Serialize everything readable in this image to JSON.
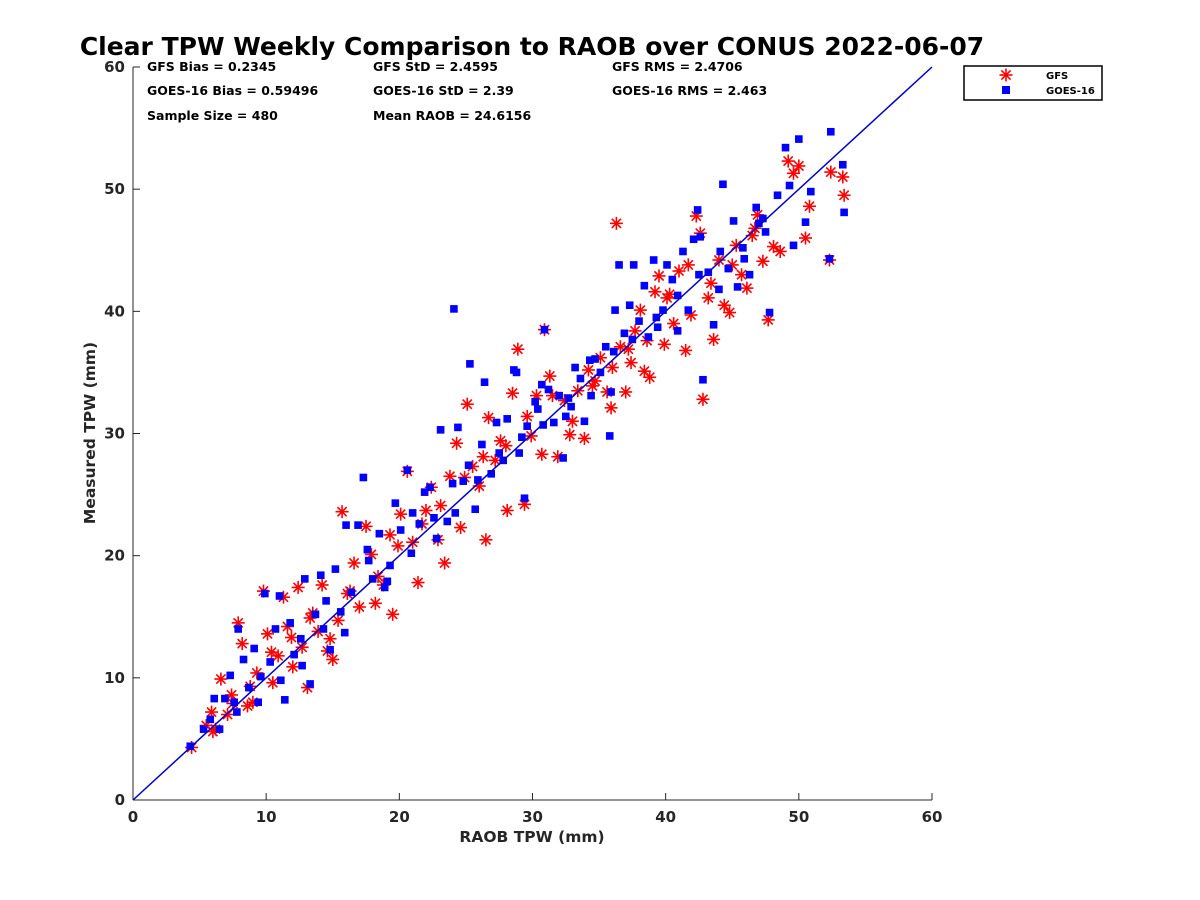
{
  "chart_data": {
    "type": "scatter",
    "title": "Clear TPW Weekly Comparison to RAOB over CONUS 2022-06-07",
    "xlabel": "RAOB TPW (mm)",
    "ylabel": "Measured TPW (mm)",
    "xlim": [
      0,
      60
    ],
    "ylim": [
      0,
      60
    ],
    "xticks": [
      "0",
      "10",
      "20",
      "30",
      "40",
      "50",
      "60"
    ],
    "yticks": [
      "0",
      "10",
      "20",
      "30",
      "40",
      "50",
      "60"
    ],
    "grid": false,
    "legend_position": "top-right (outside plot)",
    "reference_line": {
      "from": [
        0,
        0
      ],
      "to": [
        60,
        60
      ],
      "color": "#0000cc"
    },
    "stats": {
      "gfs_bias": "GFS Bias = 0.2345",
      "goes_bias": "GOES-16 Bias = 0.59496",
      "sample_size": "Sample Size = 480",
      "gfs_std": "GFS StD = 2.4595",
      "goes_std": "GOES-16 StD = 2.39",
      "mean_raob": "Mean RAOB = 24.6156",
      "gfs_rms": "GFS RMS = 2.4706",
      "goes_rms": "GOES-16 RMS = 2.463"
    },
    "series": [
      {
        "name": "GFS",
        "marker": "asterisk",
        "color": "#ff0000",
        "points": [
          [
            4.4,
            4.3
          ],
          [
            5.5,
            6.1
          ],
          [
            5.9,
            7.2
          ],
          [
            6.2,
            5.8
          ],
          [
            6.6,
            9.9
          ],
          [
            7.1,
            7.0
          ],
          [
            7.4,
            8.6
          ],
          [
            7.9,
            14.5
          ],
          [
            8.2,
            12.8
          ],
          [
            8.6,
            7.7
          ],
          [
            9.0,
            8.0
          ],
          [
            9.3,
            10.4
          ],
          [
            9.8,
            17.1
          ],
          [
            10.1,
            13.6
          ],
          [
            10.5,
            9.6
          ],
          [
            10.9,
            11.8
          ],
          [
            11.3,
            16.6
          ],
          [
            11.6,
            14.2
          ],
          [
            12.0,
            10.9
          ],
          [
            12.4,
            17.4
          ],
          [
            12.7,
            12.5
          ],
          [
            13.1,
            9.2
          ],
          [
            13.5,
            15.3
          ],
          [
            13.9,
            13.8
          ],
          [
            14.2,
            17.6
          ],
          [
            14.6,
            12.2
          ],
          [
            15.0,
            11.5
          ],
          [
            15.4,
            14.7
          ],
          [
            15.7,
            23.6
          ],
          [
            16.1,
            16.9
          ],
          [
            16.6,
            19.4
          ],
          [
            17.0,
            15.8
          ],
          [
            17.5,
            22.4
          ],
          [
            17.9,
            20.1
          ],
          [
            18.4,
            18.3
          ],
          [
            18.8,
            17.6
          ],
          [
            19.3,
            21.7
          ],
          [
            19.5,
            15.2
          ],
          [
            20.1,
            23.4
          ],
          [
            20.6,
            26.9
          ],
          [
            21.0,
            21.1
          ],
          [
            21.4,
            17.8
          ],
          [
            22.0,
            23.7
          ],
          [
            22.4,
            25.6
          ],
          [
            22.9,
            21.3
          ],
          [
            23.4,
            19.4
          ],
          [
            23.8,
            26.5
          ],
          [
            24.3,
            29.2
          ],
          [
            24.6,
            22.3
          ],
          [
            25.1,
            32.4
          ],
          [
            25.5,
            27.3
          ],
          [
            26.0,
            25.7
          ],
          [
            26.5,
            21.3
          ],
          [
            26.7,
            31.3
          ],
          [
            27.2,
            27.8
          ],
          [
            27.6,
            29.4
          ],
          [
            28.1,
            23.7
          ],
          [
            28.5,
            33.3
          ],
          [
            28.9,
            36.9
          ],
          [
            29.4,
            24.2
          ],
          [
            29.9,
            29.8
          ],
          [
            30.3,
            33.1
          ],
          [
            30.7,
            28.3
          ],
          [
            30.9,
            38.5
          ],
          [
            31.3,
            34.7
          ],
          [
            31.9,
            28.1
          ],
          [
            32.4,
            32.7
          ],
          [
            32.8,
            29.9
          ],
          [
            33.4,
            33.5
          ],
          [
            33.9,
            29.6
          ],
          [
            34.2,
            35.2
          ],
          [
            34.7,
            34.3
          ],
          [
            35.1,
            36.2
          ],
          [
            35.6,
            33.4
          ],
          [
            35.9,
            32.1
          ],
          [
            36.3,
            47.2
          ],
          [
            36.6,
            37.1
          ],
          [
            37.0,
            33.4
          ],
          [
            37.4,
            35.8
          ],
          [
            37.7,
            38.4
          ],
          [
            38.1,
            40.1
          ],
          [
            38.4,
            35.1
          ],
          [
            38.8,
            34.6
          ],
          [
            39.2,
            41.6
          ],
          [
            39.5,
            42.9
          ],
          [
            39.9,
            37.3
          ],
          [
            40.3,
            41.4
          ],
          [
            40.6,
            39.0
          ],
          [
            41.0,
            43.3
          ],
          [
            41.5,
            36.8
          ],
          [
            41.9,
            39.7
          ],
          [
            42.3,
            47.8
          ],
          [
            42.6,
            46.4
          ],
          [
            42.8,
            32.8
          ],
          [
            43.2,
            41.1
          ],
          [
            43.6,
            37.7
          ],
          [
            44.0,
            44.2
          ],
          [
            44.4,
            40.5
          ],
          [
            44.8,
            39.9
          ],
          [
            45.3,
            45.4
          ],
          [
            45.7,
            43.0
          ],
          [
            46.1,
            41.9
          ],
          [
            46.5,
            46.2
          ],
          [
            46.9,
            47.9
          ],
          [
            47.3,
            44.1
          ],
          [
            47.7,
            39.3
          ],
          [
            48.1,
            45.3
          ],
          [
            48.6,
            44.9
          ],
          [
            49.2,
            52.3
          ],
          [
            49.6,
            51.3
          ],
          [
            50.0,
            51.9
          ],
          [
            50.5,
            46.0
          ],
          [
            50.8,
            48.6
          ],
          [
            52.3,
            44.2
          ],
          [
            52.4,
            51.4
          ],
          [
            53.3,
            51.0
          ],
          [
            53.4,
            49.5
          ],
          [
            6.0,
            5.6
          ],
          [
            7.5,
            7.9
          ],
          [
            8.8,
            9.3
          ],
          [
            10.4,
            12.1
          ],
          [
            11.9,
            13.3
          ],
          [
            13.3,
            14.9
          ],
          [
            14.8,
            13.2
          ],
          [
            16.3,
            17.1
          ],
          [
            18.2,
            16.1
          ],
          [
            19.9,
            20.8
          ],
          [
            21.7,
            22.6
          ],
          [
            23.1,
            24.1
          ],
          [
            24.9,
            26.4
          ],
          [
            26.3,
            28.1
          ],
          [
            28.0,
            29.0
          ],
          [
            29.6,
            31.4
          ],
          [
            31.5,
            33.1
          ],
          [
            33.0,
            31.0
          ],
          [
            34.5,
            33.9
          ],
          [
            36.0,
            35.4
          ],
          [
            37.2,
            36.9
          ],
          [
            38.6,
            37.6
          ],
          [
            40.1,
            41.1
          ],
          [
            41.7,
            43.8
          ],
          [
            43.4,
            42.3
          ],
          [
            45.0,
            43.8
          ],
          [
            46.7,
            46.8
          ]
        ]
      },
      {
        "name": "GOES-16",
        "marker": "square",
        "color": "#0000ff",
        "points": [
          [
            4.3,
            4.4
          ],
          [
            5.3,
            5.8
          ],
          [
            5.8,
            6.6
          ],
          [
            6.1,
            8.3
          ],
          [
            6.5,
            5.8
          ],
          [
            6.9,
            8.3
          ],
          [
            7.3,
            10.2
          ],
          [
            7.6,
            8.0
          ],
          [
            7.9,
            14.0
          ],
          [
            8.3,
            11.5
          ],
          [
            8.7,
            9.2
          ],
          [
            9.1,
            12.4
          ],
          [
            9.6,
            10.1
          ],
          [
            9.9,
            16.9
          ],
          [
            10.3,
            11.3
          ],
          [
            10.7,
            14.0
          ],
          [
            11.0,
            16.7
          ],
          [
            11.4,
            8.2
          ],
          [
            11.8,
            14.5
          ],
          [
            12.1,
            11.9
          ],
          [
            12.6,
            13.2
          ],
          [
            12.9,
            18.1
          ],
          [
            13.3,
            9.5
          ],
          [
            13.7,
            15.2
          ],
          [
            14.1,
            18.4
          ],
          [
            14.5,
            16.3
          ],
          [
            14.8,
            12.3
          ],
          [
            15.2,
            18.9
          ],
          [
            15.6,
            15.4
          ],
          [
            16.0,
            22.5
          ],
          [
            16.4,
            17.0
          ],
          [
            16.9,
            22.5
          ],
          [
            17.3,
            26.4
          ],
          [
            17.6,
            20.5
          ],
          [
            18.0,
            18.1
          ],
          [
            18.5,
            21.8
          ],
          [
            18.9,
            17.4
          ],
          [
            19.3,
            19.2
          ],
          [
            19.7,
            24.3
          ],
          [
            20.1,
            22.1
          ],
          [
            20.6,
            27.0
          ],
          [
            21.0,
            23.5
          ],
          [
            21.5,
            22.6
          ],
          [
            21.9,
            25.2
          ],
          [
            22.3,
            25.6
          ],
          [
            22.8,
            21.4
          ],
          [
            23.1,
            30.3
          ],
          [
            23.6,
            22.8
          ],
          [
            24.0,
            25.9
          ],
          [
            24.4,
            30.5
          ],
          [
            24.8,
            26.1
          ],
          [
            25.2,
            27.4
          ],
          [
            25.7,
            23.8
          ],
          [
            26.2,
            29.1
          ],
          [
            26.4,
            34.2
          ],
          [
            26.9,
            26.7
          ],
          [
            27.3,
            30.9
          ],
          [
            27.8,
            27.8
          ],
          [
            28.1,
            31.2
          ],
          [
            28.6,
            35.2
          ],
          [
            29.0,
            28.4
          ],
          [
            29.4,
            24.7
          ],
          [
            29.6,
            30.6
          ],
          [
            30.2,
            32.6
          ],
          [
            30.7,
            34.0
          ],
          [
            30.9,
            38.5
          ],
          [
            31.2,
            33.6
          ],
          [
            31.6,
            30.9
          ],
          [
            32.0,
            33.1
          ],
          [
            32.5,
            31.4
          ],
          [
            32.9,
            32.2
          ],
          [
            33.2,
            35.4
          ],
          [
            33.6,
            34.5
          ],
          [
            33.9,
            31.0
          ],
          [
            34.4,
            33.1
          ],
          [
            34.7,
            36.1
          ],
          [
            35.1,
            35.0
          ],
          [
            35.5,
            37.1
          ],
          [
            35.9,
            33.4
          ],
          [
            36.2,
            40.1
          ],
          [
            36.5,
            43.8
          ],
          [
            36.9,
            38.2
          ],
          [
            37.3,
            40.5
          ],
          [
            37.6,
            43.8
          ],
          [
            38.0,
            39.2
          ],
          [
            38.4,
            42.1
          ],
          [
            38.7,
            37.9
          ],
          [
            39.1,
            44.2
          ],
          [
            39.4,
            38.7
          ],
          [
            39.8,
            40.1
          ],
          [
            40.1,
            43.8
          ],
          [
            40.5,
            42.6
          ],
          [
            40.9,
            38.4
          ],
          [
            41.3,
            44.9
          ],
          [
            41.7,
            40.1
          ],
          [
            42.1,
            45.9
          ],
          [
            42.4,
            48.3
          ],
          [
            42.6,
            46.1
          ],
          [
            42.8,
            34.4
          ],
          [
            43.2,
            43.2
          ],
          [
            43.6,
            38.9
          ],
          [
            44.0,
            41.8
          ],
          [
            44.3,
            50.4
          ],
          [
            44.7,
            43.5
          ],
          [
            45.1,
            47.4
          ],
          [
            45.4,
            42.0
          ],
          [
            45.9,
            44.3
          ],
          [
            46.3,
            43.0
          ],
          [
            46.8,
            48.5
          ],
          [
            47.0,
            47.2
          ],
          [
            47.5,
            46.5
          ],
          [
            47.8,
            39.9
          ],
          [
            48.4,
            49.5
          ],
          [
            49.0,
            53.4
          ],
          [
            49.3,
            50.3
          ],
          [
            49.6,
            45.4
          ],
          [
            50.0,
            54.1
          ],
          [
            50.5,
            47.3
          ],
          [
            50.9,
            49.8
          ],
          [
            52.3,
            44.3
          ],
          [
            52.4,
            54.7
          ],
          [
            53.3,
            52.0
          ],
          [
            53.4,
            48.1
          ],
          [
            24.1,
            40.2
          ],
          [
            25.3,
            35.7
          ],
          [
            28.8,
            35.0
          ],
          [
            30.4,
            32.0
          ],
          [
            32.3,
            28.0
          ],
          [
            35.8,
            29.8
          ],
          [
            7.8,
            7.2
          ],
          [
            9.4,
            8.0
          ],
          [
            11.1,
            9.8
          ],
          [
            12.7,
            11.0
          ],
          [
            14.3,
            14.0
          ],
          [
            15.9,
            13.7
          ],
          [
            17.7,
            19.6
          ],
          [
            19.1,
            17.9
          ],
          [
            20.9,
            20.2
          ],
          [
            22.6,
            23.1
          ],
          [
            24.2,
            23.5
          ],
          [
            25.9,
            26.2
          ],
          [
            27.5,
            28.4
          ],
          [
            29.2,
            29.7
          ],
          [
            30.8,
            30.7
          ],
          [
            32.7,
            32.9
          ],
          [
            34.3,
            36.0
          ],
          [
            36.1,
            36.7
          ],
          [
            37.5,
            37.7
          ],
          [
            39.3,
            39.5
          ],
          [
            40.9,
            41.3
          ],
          [
            42.5,
            43.0
          ],
          [
            44.1,
            44.9
          ],
          [
            45.8,
            45.2
          ],
          [
            47.3,
            47.6
          ]
        ]
      }
    ]
  }
}
